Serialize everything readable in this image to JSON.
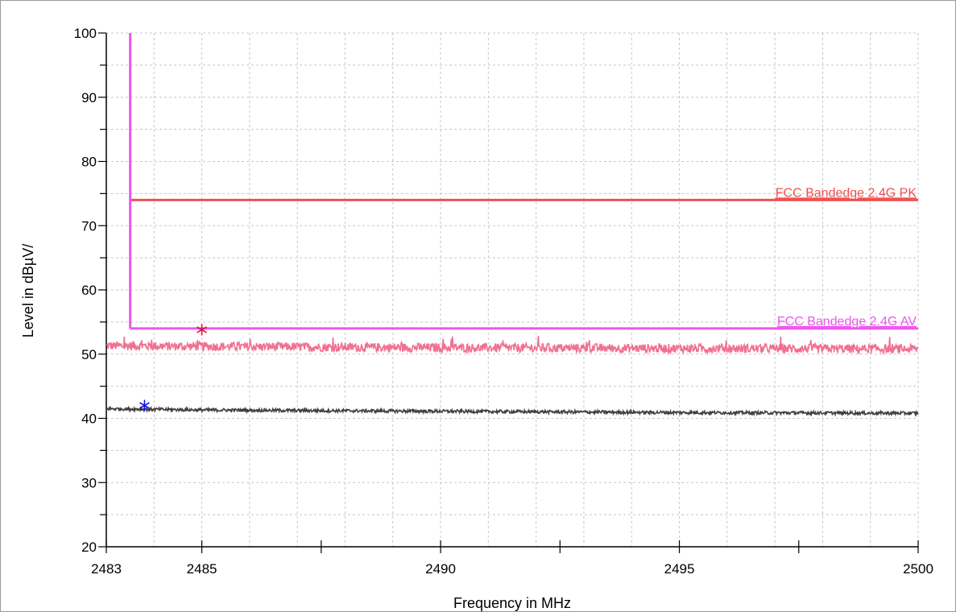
{
  "chart_data": {
    "type": "line",
    "xlabel": "Frequency in MHz",
    "ylabel": "Level in dBµV/",
    "xlim": [
      2483,
      2500
    ],
    "ylim": [
      20,
      100
    ],
    "x_ticks": [
      2483,
      2485,
      2490,
      2495,
      2500
    ],
    "y_ticks": [
      20,
      30,
      40,
      50,
      60,
      70,
      80,
      90,
      100
    ],
    "grid": true,
    "limits": [
      {
        "name": "FCC Bandedge 2.4G PK",
        "y": 74,
        "x_start": 2483.5,
        "x_end": 2500,
        "color": "#f05050"
      },
      {
        "name": "FCC Bandedge 2.4G AV",
        "y": 54,
        "x_start": 2483.5,
        "x_end": 2500,
        "color": "#ee55ee",
        "vertical_from": 54,
        "vertical_to": 100
      }
    ],
    "series": [
      {
        "values_desc": "peak trace",
        "x": [
          2483,
          2485,
          2490,
          2495,
          2500
        ],
        "y": [
          51.3,
          51.2,
          51.0,
          50.9,
          50.8
        ],
        "noise": 0.7,
        "color": "#f07090"
      },
      {
        "values_desc": "average trace",
        "x": [
          2483,
          2485,
          2490,
          2495,
          2500
        ],
        "y": [
          41.5,
          41.3,
          41.1,
          40.9,
          40.8
        ],
        "noise": 0.25,
        "color": "#404040"
      }
    ],
    "markers": [
      {
        "x": 2485.0,
        "y": 53.8,
        "color": "#e0103a"
      },
      {
        "x": 2483.8,
        "y": 42.0,
        "color": "#1010e0"
      }
    ]
  }
}
